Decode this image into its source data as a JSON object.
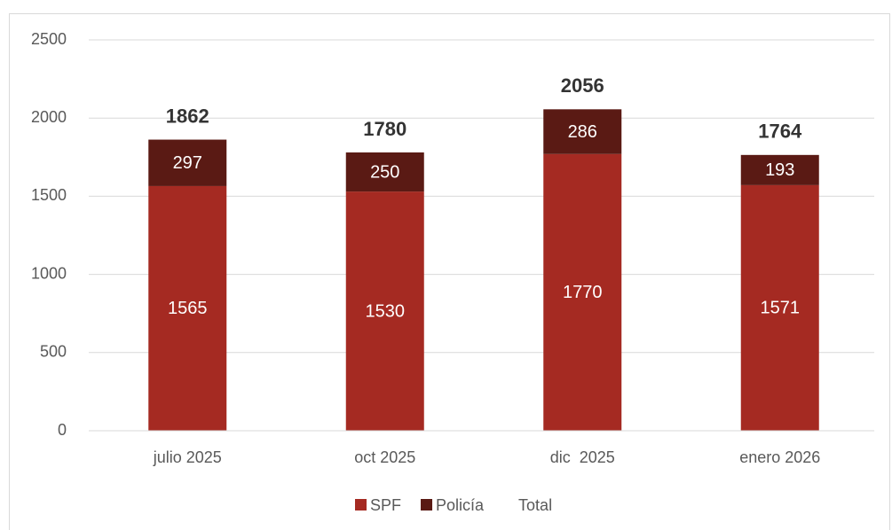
{
  "chart_data": {
    "type": "stacked_bar",
    "categories": [
      "julio 2025",
      "oct 2025",
      "dic  2025",
      "enero 2026"
    ],
    "series": [
      {
        "name": "SPF",
        "color": "#a52a22",
        "values": [
          1565,
          1530,
          1770,
          1571
        ]
      },
      {
        "name": "Policía",
        "color": "#5a1a14",
        "values": [
          297,
          250,
          286,
          193
        ]
      },
      {
        "name": "Total",
        "color": "none",
        "values": [
          1862,
          1780,
          2056,
          1764
        ]
      }
    ],
    "ylim": [
      0,
      2500
    ],
    "yticks": [
      0,
      500,
      1000,
      1500,
      2000,
      2500
    ],
    "grid": true,
    "legend": "bottom"
  }
}
